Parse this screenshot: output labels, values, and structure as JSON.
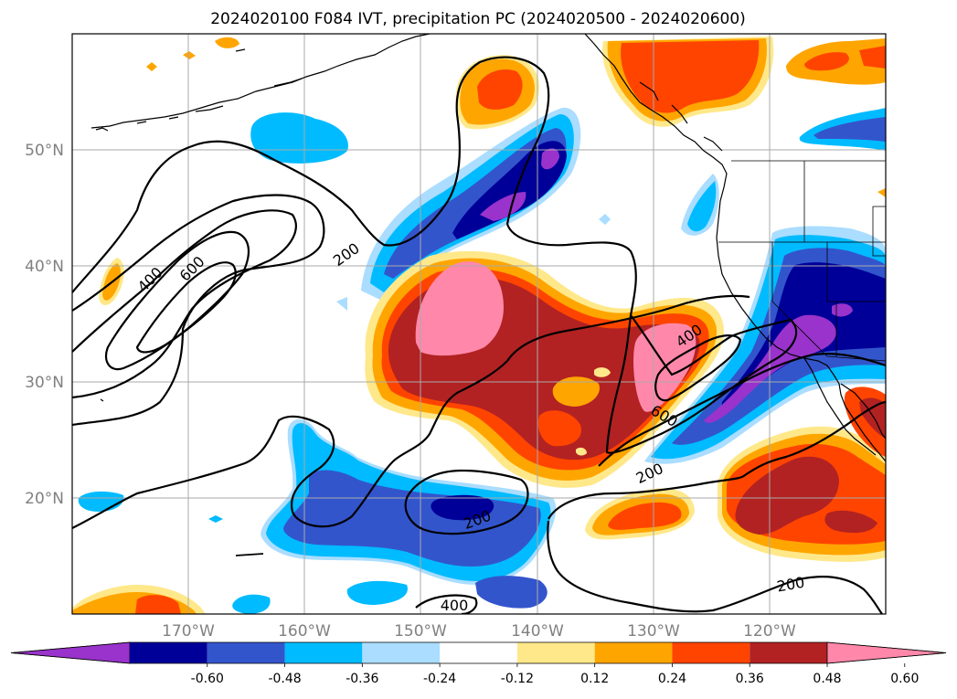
{
  "title": "2024020100 F084 IVT, precipitation PC (2024020500 - 2024020600)",
  "lat_labels": [
    "50°N",
    "40°N",
    "30°N",
    "20°N"
  ],
  "lon_labels": [
    "170°W",
    "160°W",
    "150°W",
    "140°W",
    "130°W",
    "120°W"
  ],
  "colorbar": {
    "ticks": [
      "-0.60",
      "-0.48",
      "-0.36",
      "-0.24",
      "-0.12",
      "0.12",
      "0.24",
      "0.36",
      "0.48",
      "0.60"
    ],
    "colors": [
      "#9933cc",
      "#000099",
      "#3355cc",
      "#00bbff",
      "#aaddff",
      "#ffffff",
      "#ffe88a",
      "#ffa500",
      "#ff4400",
      "#b22222",
      "#ff88aa"
    ],
    "extend": "both"
  },
  "ivt_contour_labels": [
    "400",
    "600",
    "200",
    "400",
    "600",
    "200",
    "200",
    "400",
    "200"
  ],
  "colors": {
    "contour": "#000000",
    "grid": "#aaaaaa",
    "coast": "#000000",
    "tick_label": "#808080"
  }
}
